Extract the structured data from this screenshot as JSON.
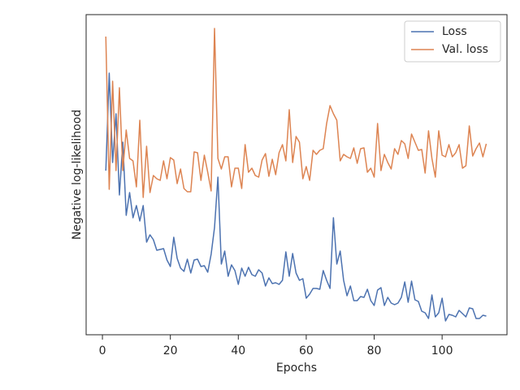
{
  "chart_data": {
    "type": "line",
    "xlabel": "Epochs",
    "ylabel": "Negative log-likelihood",
    "xlim": [
      -4.8,
      119.1
    ],
    "xticks": [
      0,
      20,
      40,
      60,
      80,
      100
    ],
    "ylim": [
      0,
      394
    ],
    "legend": "upper right",
    "x": [
      1,
      2,
      3,
      4,
      5,
      6,
      7,
      8,
      9,
      10,
      11,
      12,
      13,
      14,
      15,
      16,
      17,
      18,
      19,
      20,
      21,
      22,
      23,
      24,
      25,
      26,
      27,
      28,
      29,
      30,
      31,
      32,
      33,
      34,
      35,
      36,
      37,
      38,
      39,
      40,
      41,
      42,
      43,
      44,
      45,
      46,
      47,
      48,
      49,
      50,
      51,
      52,
      53,
      54,
      55,
      56,
      57,
      58,
      59,
      60,
      61,
      62,
      63,
      64,
      65,
      66,
      67,
      68,
      69,
      70,
      71,
      72,
      73,
      74,
      75,
      76,
      77,
      78,
      79,
      80,
      81,
      82,
      83,
      84,
      85,
      86,
      87,
      88,
      89,
      90,
      91,
      92,
      93,
      94,
      95,
      96,
      97,
      98,
      99,
      100,
      101,
      102,
      103,
      104,
      105,
      106,
      107,
      108,
      109,
      110,
      111,
      112,
      113
    ],
    "series": [
      {
        "name": "Loss",
        "color": "#4c72b0",
        "values": [
          202,
          322,
          212,
          272,
          172,
          237,
          147,
          175,
          144,
          159,
          140,
          159,
          114,
          123,
          117,
          104,
          105,
          106,
          92,
          84,
          120,
          94,
          82,
          78,
          93,
          76,
          92,
          93,
          84,
          85,
          77,
          99,
          132,
          194,
          87,
          103,
          72,
          86,
          79,
          62,
          82,
          72,
          83,
          74,
          72,
          80,
          76,
          60,
          70,
          63,
          64,
          62,
          67,
          102,
          72,
          100,
          76,
          67,
          69,
          45,
          50,
          57,
          57,
          56,
          79,
          67,
          57,
          144,
          87,
          103,
          67,
          48,
          60,
          42,
          42,
          47,
          46,
          56,
          42,
          36,
          55,
          58,
          36,
          46,
          39,
          37,
          39,
          46,
          65,
          40,
          66,
          43,
          41,
          29,
          27,
          20,
          49,
          22,
          27,
          45,
          17,
          25,
          24,
          22,
          30,
          26,
          22,
          33,
          32,
          20,
          20,
          24,
          23
        ]
      },
      {
        "name": "Val. loss",
        "color": "#dd8452",
        "values": [
          367,
          179,
          312,
          202,
          304,
          202,
          252,
          217,
          214,
          182,
          264,
          169,
          232,
          175,
          196,
          192,
          190,
          214,
          192,
          218,
          215,
          186,
          204,
          180,
          176,
          176,
          225,
          224,
          190,
          221,
          200,
          177,
          377,
          217,
          204,
          219,
          219,
          182,
          205,
          205,
          180,
          234,
          200,
          205,
          196,
          194,
          215,
          223,
          195,
          216,
          197,
          224,
          234,
          214,
          277,
          212,
          244,
          237,
          192,
          207,
          190,
          227,
          222,
          227,
          229,
          260,
          282,
          272,
          264,
          214,
          222,
          219,
          217,
          230,
          211,
          229,
          230,
          200,
          205,
          194,
          260,
          202,
          222,
          212,
          204,
          229,
          222,
          239,
          235,
          217,
          247,
          237,
          227,
          228,
          199,
          251,
          217,
          194,
          251,
          221,
          219,
          234,
          219,
          224,
          234,
          205,
          208,
          257,
          220,
          229,
          236,
          219,
          235
        ]
      }
    ]
  }
}
